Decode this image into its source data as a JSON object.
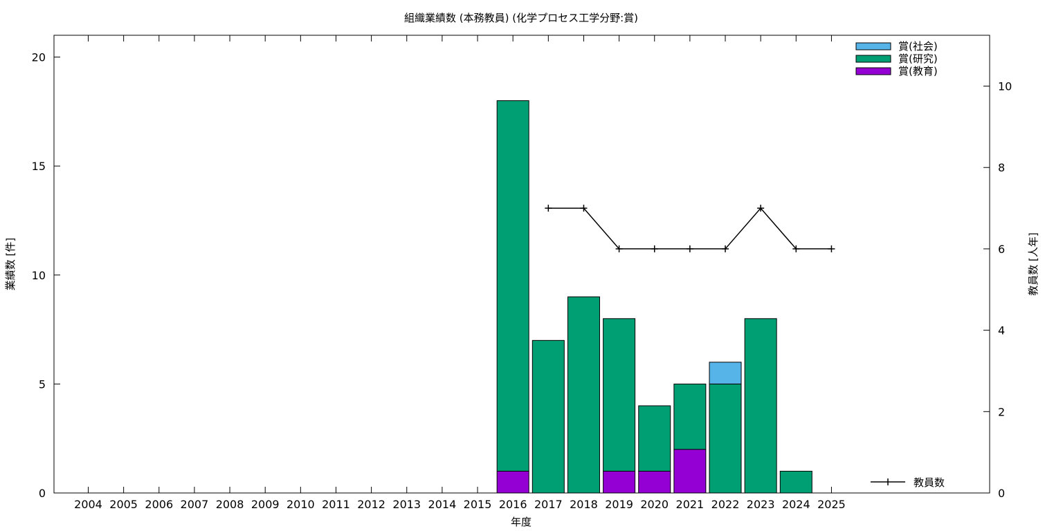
{
  "chart_data": {
    "type": "bar",
    "title": "組織業績数 (本務教員) (化学プロセス工学分野:賞)",
    "xlabel": "年度",
    "ylabel": "業績数 [件]",
    "y2label": "教員数 [人年]",
    "ylim": [
      0,
      21
    ],
    "y2lim": [
      0,
      11.25
    ],
    "yticks": [
      0,
      5,
      10,
      15,
      20
    ],
    "y2ticks": [
      0,
      2,
      4,
      6,
      8,
      10
    ],
    "legend_position": "top-right",
    "categories": [
      "2004",
      "2005",
      "2006",
      "2007",
      "2008",
      "2009",
      "2010",
      "2011",
      "2012",
      "2013",
      "2014",
      "2015",
      "2016",
      "2017",
      "2018",
      "2019",
      "2020",
      "2021",
      "2022",
      "2023",
      "2024",
      "2025"
    ],
    "stacked": true,
    "series": [
      {
        "name": "賞(教育)",
        "color": "#9400d3",
        "values": [
          0,
          0,
          0,
          0,
          0,
          0,
          0,
          0,
          0,
          0,
          0,
          0,
          1,
          0,
          0,
          1,
          1,
          2,
          0,
          0,
          0,
          0
        ]
      },
      {
        "name": "賞(研究)",
        "color": "#009e73",
        "values": [
          0,
          0,
          0,
          0,
          0,
          0,
          0,
          0,
          0,
          0,
          0,
          0,
          17,
          7,
          9,
          7,
          3,
          3,
          5,
          8,
          1,
          0
        ]
      },
      {
        "name": "賞(社会)",
        "color": "#56b4e9",
        "values": [
          0,
          0,
          0,
          0,
          0,
          0,
          0,
          0,
          0,
          0,
          0,
          0,
          0,
          0,
          0,
          0,
          0,
          0,
          1,
          0,
          0,
          0
        ]
      }
    ],
    "line_series": {
      "name": "教員数",
      "axis": "right",
      "color": "#000000",
      "x": [
        "2017",
        "2018",
        "2019",
        "2020",
        "2021",
        "2022",
        "2023",
        "2024",
        "2025"
      ],
      "values": [
        7,
        7,
        6,
        6,
        6,
        6,
        7,
        6,
        6
      ]
    }
  }
}
